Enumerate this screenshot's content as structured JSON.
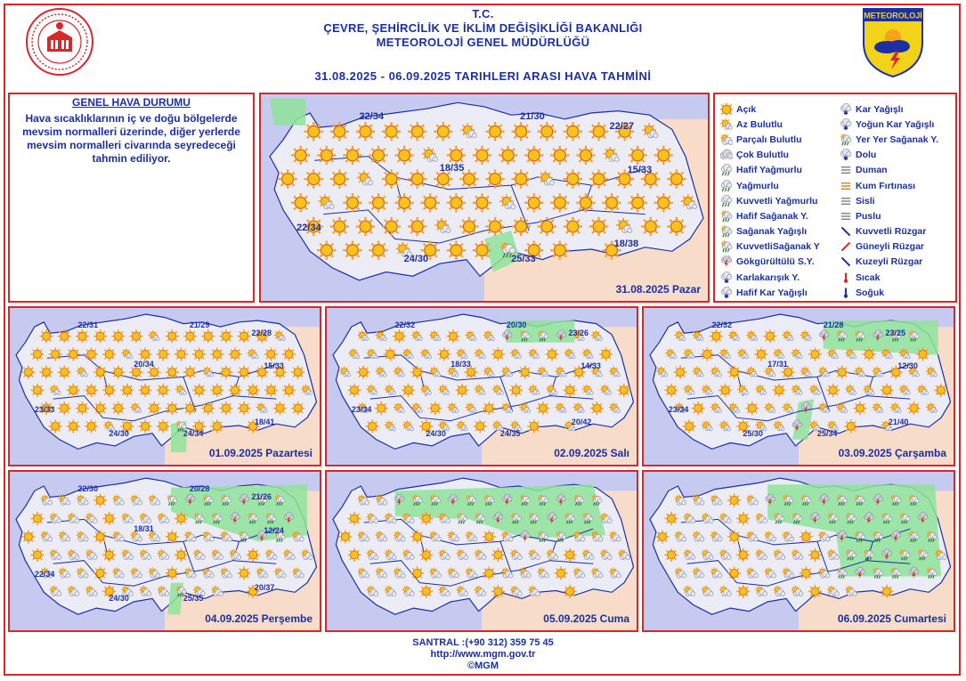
{
  "header": {
    "line1": "T.C.",
    "line2": "ÇEVRE, ŞEHİRCİLİK VE İKLİM DEĞİŞİKLİĞİ BAKANLIĞI",
    "line3": "METEOROLOJİ  GENEL  MÜDÜRLÜĞÜ",
    "date_range": "31.08.2025  -  06.09.2025    TARIHLERI  ARASI  HAVA  TAHMİNİ",
    "logo_text": "METEOROLOJİ"
  },
  "general": {
    "title": "GENEL HAVA DURUMU",
    "text": "Hava sıcaklıklarının iç ve doğu bölgelerde mevsim normalleri üzerinde, diğer yerlerde mevsim normalleri civarında seyredeceği tahmin ediliyor."
  },
  "legend": {
    "left": [
      {
        "label": "Açık",
        "icon": "sun-icon"
      },
      {
        "label": "Az Bulutlu",
        "icon": "few-clouds-icon"
      },
      {
        "label": "Parçalı Bulutlu",
        "icon": "partly-cloudy-icon"
      },
      {
        "label": "Çok Bulutlu",
        "icon": "cloudy-icon"
      },
      {
        "label": "Hafif Yağmurlu",
        "icon": "light-rain-icon"
      },
      {
        "label": "Yağmurlu",
        "icon": "rain-icon"
      },
      {
        "label": "Kuvvetli Yağmurlu",
        "icon": "heavy-rain-icon"
      },
      {
        "label": "Hafif Sağanak Y.",
        "icon": "light-shower-icon"
      },
      {
        "label": "Sağanak Yağışlı",
        "icon": "shower-icon"
      },
      {
        "label": "KuvvetliSağanak Y",
        "icon": "heavy-shower-icon"
      },
      {
        "label": "Gökgürültülü S.Y.",
        "icon": "thunderstorm-icon"
      },
      {
        "label": "Karlakarışık Y.",
        "icon": "sleet-icon"
      },
      {
        "label": "Hafif Kar Yağışlı",
        "icon": "light-snow-icon"
      }
    ],
    "right": [
      {
        "label": "Kar Yağışlı",
        "icon": "snow-icon"
      },
      {
        "label": "Yoğun Kar Yağışlı",
        "icon": "heavy-snow-icon"
      },
      {
        "label": "Yer Yer Sağanak Y.",
        "icon": "scattered-shower-icon"
      },
      {
        "label": "Dolu",
        "icon": "hail-icon"
      },
      {
        "label": "Duman",
        "icon": "smoke-icon"
      },
      {
        "label": "Kum Fırtınası",
        "icon": "sandstorm-icon"
      },
      {
        "label": "Sisli",
        "icon": "fog-icon"
      },
      {
        "label": "Puslu",
        "icon": "haze-icon"
      },
      {
        "label": "Kuvvetli Rüzgar",
        "icon": "strong-wind-icon"
      },
      {
        "label": "Güneyli Rüzgar",
        "icon": "south-wind-icon"
      },
      {
        "label": "Kuzeyli Rüzgar",
        "icon": "north-wind-icon"
      },
      {
        "label": "Sıcak",
        "icon": "hot-icon"
      },
      {
        "label": "Soğuk",
        "icon": "cold-icon"
      }
    ]
  },
  "maps": [
    {
      "date": "31.08.2025 Pazar",
      "temps": [
        "22/34",
        "21/30",
        "22/27",
        "18/35",
        "15/33",
        "22/34",
        "24/30",
        "25/33",
        "18/38"
      ]
    },
    {
      "date": "01.09.2025 Pazartesi",
      "temps": [
        "22/31",
        "21/29",
        "22/28",
        "20/34",
        "15/33",
        "23/33",
        "24/30",
        "24/34",
        "18/41"
      ]
    },
    {
      "date": "02.09.2025 Salı",
      "temps": [
        "22/32",
        "20/30",
        "23/26",
        "18/33",
        "14/33",
        "23/34",
        "24/30",
        "24/35",
        "20/42"
      ]
    },
    {
      "date": "03.09.2025 Çarşamba",
      "temps": [
        "22/32",
        "21/28",
        "23/25",
        "17/31",
        "12/30",
        "23/34",
        "25/30",
        "25/34",
        "21/40"
      ]
    },
    {
      "date": "04.09.2025 Perşembe",
      "temps": [
        "22/30",
        "20/28",
        "21/26",
        "18/31",
        "12/24",
        "22/34",
        "24/30",
        "25/35",
        "20/37"
      ]
    },
    {
      "date": "05.09.2025 Cuma",
      "temps": []
    },
    {
      "date": "06.09.2025 Cumartesi",
      "temps": []
    }
  ],
  "footer": {
    "phone": "SANTRAL :(+90 312) 359 75 45",
    "url": "http://www.mgm.gov.tr",
    "copyright": "©MGM"
  },
  "colors": {
    "frame": "#d8262b",
    "text": "#1b2fa6",
    "land": "#ececf7",
    "sea": "#c6c9f0",
    "background": "#f6dcc9",
    "rain_area": "#8fe39a",
    "sun": "#f5a31a"
  }
}
